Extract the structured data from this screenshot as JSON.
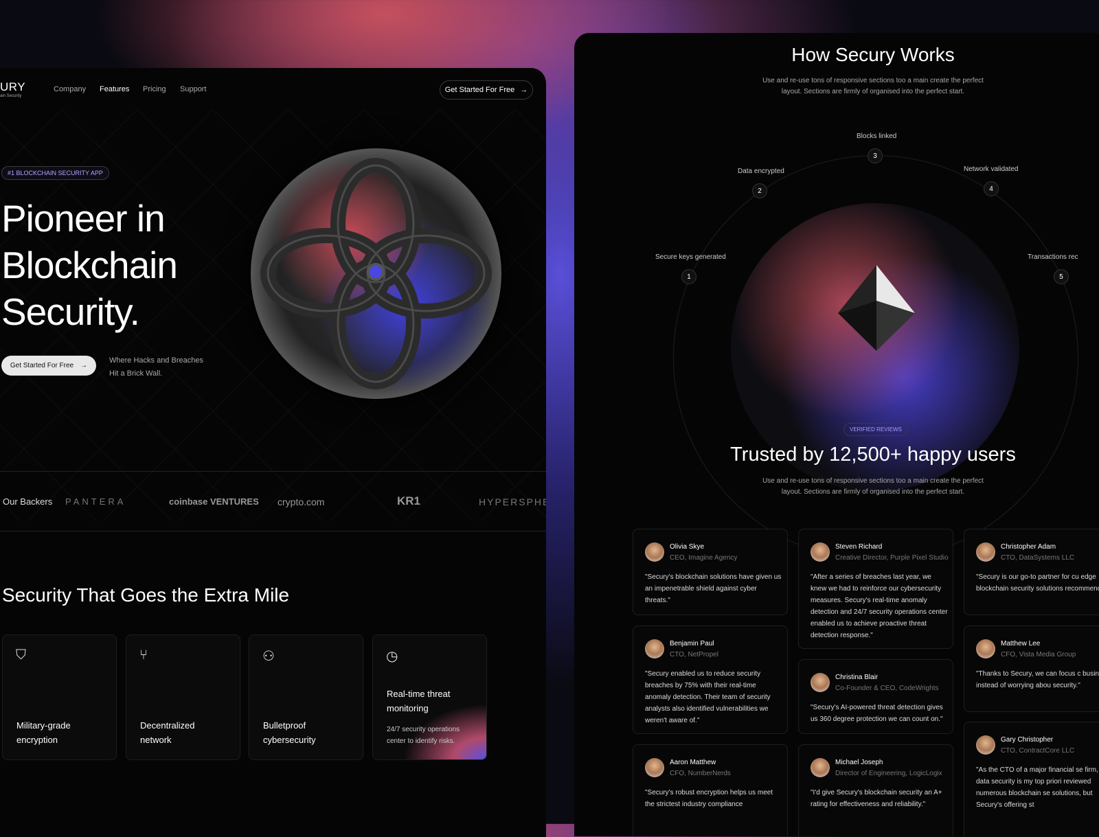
{
  "left": {
    "logo": {
      "text": "URY",
      "subtext": "ain Security"
    },
    "nav": [
      "Company",
      "Features",
      "Pricing",
      "Support"
    ],
    "nav_cta": "Get Started For Free",
    "badge": "#1 BLOCKCHAIN SECURITY APP",
    "hero_lines": [
      "Pioneer in",
      "Blockchain",
      "Security."
    ],
    "cta": "Get Started For Free",
    "subtitle_lines": [
      "Where Hacks and Breaches",
      "Hit a Brick Wall."
    ],
    "backers_label": "Our Backers",
    "backers": [
      "PANTERA",
      "coinbase VENTURES",
      "crypto.com",
      "KR1",
      "HYPERSPHERE"
    ],
    "section_title": "Security That Goes the Extra Mile",
    "features": [
      {
        "icon": "shield-check-icon",
        "title": "Military-grade encryption"
      },
      {
        "icon": "network-fork-icon",
        "title": "Decentralized network"
      },
      {
        "icon": "user-shield-icon",
        "title": "Bulletproof cybersecurity"
      },
      {
        "icon": "clock-24-icon",
        "title": "Real-time threat monitoring",
        "desc": "24/7 security operations center to identify risks."
      }
    ]
  },
  "right": {
    "title": "How Secury Works",
    "desc_lines": [
      "Use and re-use tons of responsive sections too a main create the perfect",
      "layout. Sections are firmly of organised into the perfect start."
    ],
    "steps": [
      {
        "n": "1",
        "label": "Secure keys generated"
      },
      {
        "n": "2",
        "label": "Data encrypted"
      },
      {
        "n": "3",
        "label": "Blocks linked"
      },
      {
        "n": "4",
        "label": "Network validated"
      },
      {
        "n": "5",
        "label": "Transactions rec"
      }
    ],
    "reviews_badge": "VERIFIED REVIEWS",
    "reviews_title": "Trusted by 12,500+ happy users",
    "reviews_desc_lines": [
      "Use and re-use tons of responsive sections too a main create the perfect",
      "layout. Sections are firmly of organised into the perfect start."
    ],
    "testimonials": [
      {
        "name": "Olivia Skye",
        "role": "CEO, Imagine Agency",
        "quote": "\"Secury's blockchain solutions have given us an impenetrable shield against cyber threats.\""
      },
      {
        "name": "Benjamin Paul",
        "role": "CTO, NetPropel",
        "quote": "\"Secury enabled us to reduce security breaches by 75% with their real-time anomaly detection. Their team of security analysts also identified vulnerabilities we weren't aware of.\""
      },
      {
        "name": "Aaron Matthew",
        "role": "CFO, NumberNerds",
        "quote": "\"Secury's robust encryption helps us meet the strictest industry compliance"
      },
      {
        "name": "Steven Richard",
        "role": "Creative Director, Purple Pixel Studio",
        "quote": "\"After a series of breaches last year, we knew we had to reinforce our cybersecurity measures. Secury's real-time anomaly detection and 24/7 security operations center enabled us to achieve proactive threat detection response.\""
      },
      {
        "name": "Christina Blair",
        "role": "Co-Founder & CEO, CodeWrights",
        "quote": "\"Secury's AI-powered threat detection gives us 360 degree protection we can count on.\""
      },
      {
        "name": "Michael Joseph",
        "role": "Director of Engineering, LogicLogix",
        "quote": "\"I'd give Secury's blockchain security an A+ rating for effectiveness and reliability.\""
      },
      {
        "name": "Christopher Adam",
        "role": "CTO, DataSystems LLC",
        "quote": "\"Secury is our go-to partner for cu edge blockchain security solutions recommended!\""
      },
      {
        "name": "Matthew Lee",
        "role": "CFO, Vista Media Group",
        "quote": "\"Thanks to Secury, we can focus c business instead of worrying abou security.\""
      },
      {
        "name": "Gary Christopher",
        "role": "CTO, ContractCore LLC",
        "quote": "\"As the CTO of a major financial se firm, data security is my top priori reviewed numerous blockchain se solutions, but Secury's offering st"
      }
    ]
  },
  "colors": {
    "accent": "#5b4fe0",
    "warm": "#c4505e",
    "bg": "#050505"
  }
}
